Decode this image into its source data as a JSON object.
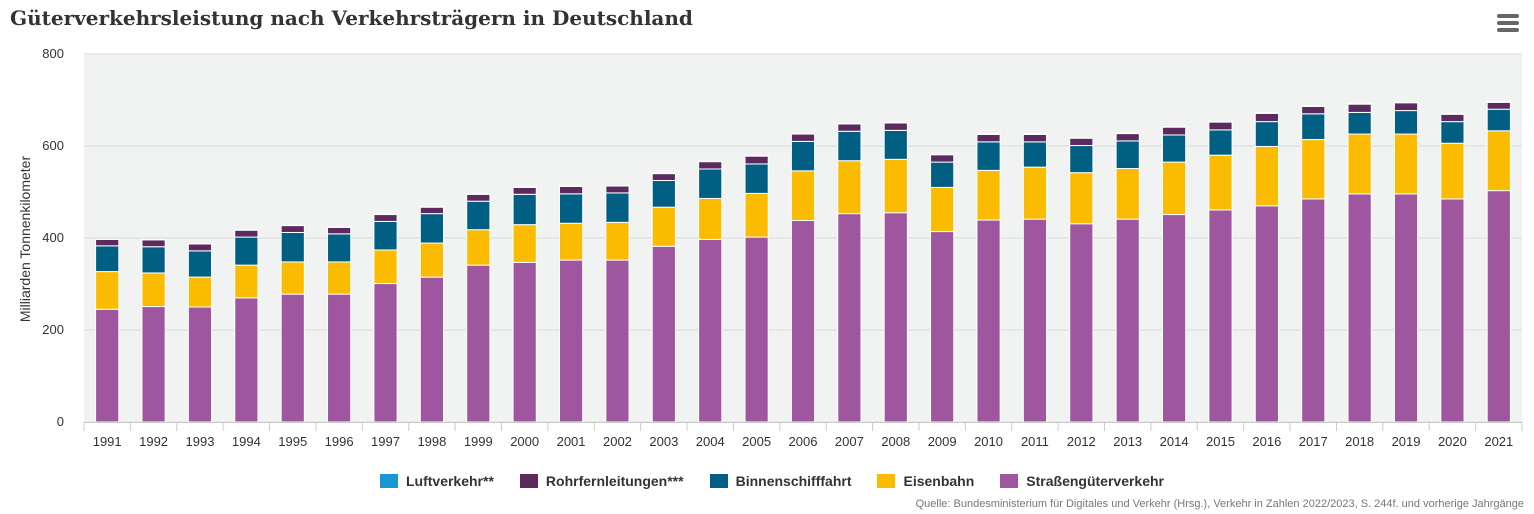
{
  "title": "Güterverkehrsleistung nach Verkehrsträgern in Deutschland",
  "menu": {
    "icon": "hamburger-menu-icon"
  },
  "source": "Quelle: Bundesministerium für Digitales und Verkehr (Hrsg.), Verkehr in Zahlen 2022/2023, S. 244f. und vorherige Jahrgänge",
  "chart_data": {
    "type": "bar",
    "stacked": true,
    "ylabel": "Milliarden Tonnenkilometer",
    "xlabel": "",
    "ylim": [
      0,
      800
    ],
    "yticks": [
      0,
      200,
      400,
      600,
      800
    ],
    "grid": true,
    "legend_position": "bottom",
    "background_color": "#f1f2f2",
    "categories": [
      "1991",
      "1992",
      "1993",
      "1994",
      "1995",
      "1996",
      "1997",
      "1998",
      "1999",
      "2000",
      "2001",
      "2002",
      "2003",
      "2004",
      "2005",
      "2006",
      "2007",
      "2008",
      "2009",
      "2010",
      "2011",
      "2012",
      "2013",
      "2014",
      "2015",
      "2016",
      "2017",
      "2018",
      "2019",
      "2020",
      "2021"
    ],
    "series": [
      {
        "name": "Luftverkehr**",
        "color": "#1b96d4",
        "values": [
          0.4,
          0.4,
          0.4,
          0.5,
          0.5,
          0.5,
          0.6,
          0.6,
          0.7,
          0.8,
          0.8,
          0.8,
          0.9,
          1.0,
          1.1,
          1.2,
          1.3,
          1.4,
          1.3,
          1.5,
          1.5,
          1.5,
          1.5,
          1.5,
          1.5,
          1.5,
          1.6,
          1.6,
          1.6,
          1.5,
          1.6
        ]
      },
      {
        "name": "Rohrfernleitungen***",
        "color": "#5b2a5f",
        "values": [
          14,
          15,
          15,
          15,
          15,
          14,
          15,
          14,
          15,
          15,
          16,
          15,
          15,
          16,
          17,
          16,
          16,
          16,
          16,
          16,
          16,
          16,
          16,
          17,
          17,
          18,
          16,
          18,
          17,
          16,
          15
        ]
      },
      {
        "name": "Binnenschifffahrt",
        "color": "#005f83",
        "values": [
          56,
          57,
          57,
          61,
          64,
          61,
          62,
          64,
          62,
          66,
          64,
          64,
          58,
          64,
          64,
          64,
          64,
          63,
          55,
          62,
          55,
          59,
          60,
          59,
          55,
          54,
          56,
          47,
          51,
          47,
          47
        ]
      },
      {
        "name": "Eisenbahn",
        "color": "#fbbb00",
        "values": [
          82,
          73,
          65,
          71,
          70,
          70,
          73,
          74,
          77,
          82,
          80,
          82,
          85,
          89,
          95,
          108,
          115,
          116,
          96,
          108,
          113,
          111,
          110,
          114,
          119,
          129,
          129,
          130,
          130,
          121,
          130
        ]
      },
      {
        "name": "Straßengüterverkehr",
        "color": "#9e579e",
        "values": [
          245,
          251,
          250,
          270,
          278,
          278,
          301,
          315,
          341,
          347,
          352,
          352,
          382,
          397,
          402,
          438,
          453,
          455,
          414,
          439,
          441,
          431,
          441,
          451,
          461,
          470,
          485,
          496,
          496,
          485,
          503
        ]
      }
    ]
  }
}
